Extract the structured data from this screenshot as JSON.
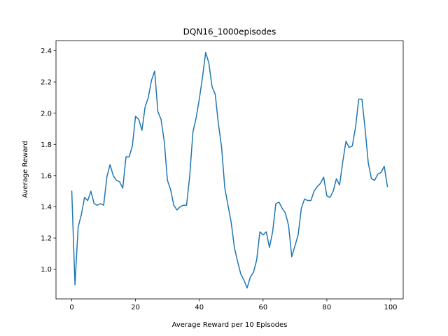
{
  "chart_data": {
    "type": "line",
    "title": "DQN16_1000episodes",
    "xlabel": "Average Reward per 10 Episodes",
    "ylabel": "Average Reward",
    "xlim": [
      -4.95,
      103.95
    ],
    "ylim": [
      0.81,
      2.465
    ],
    "xticks": [
      0,
      20,
      40,
      60,
      80,
      100
    ],
    "xtick_labels": [
      "0",
      "20",
      "40",
      "60",
      "80",
      "100"
    ],
    "yticks": [
      1.0,
      1.2,
      1.4,
      1.6,
      1.8,
      2.0,
      2.2,
      2.4
    ],
    "ytick_labels": [
      "1.0",
      "1.2",
      "1.4",
      "1.6",
      "1.8",
      "2.0",
      "2.2",
      "2.4"
    ],
    "grid": false,
    "series": [
      {
        "color": "#1f77b4",
        "x": [
          0,
          1,
          2,
          3,
          4,
          5,
          6,
          7,
          8,
          9,
          10,
          11,
          12,
          13,
          14,
          15,
          16,
          17,
          18,
          19,
          20,
          21,
          22,
          23,
          24,
          25,
          26,
          27,
          28,
          29,
          30,
          31,
          32,
          33,
          34,
          35,
          36,
          37,
          38,
          39,
          40,
          41,
          42,
          43,
          44,
          45,
          46,
          47,
          48,
          49,
          50,
          51,
          52,
          53,
          54,
          55,
          56,
          57,
          58,
          59,
          60,
          61,
          62,
          63,
          64,
          65,
          66,
          67,
          68,
          69,
          70,
          71,
          72,
          73,
          74,
          75,
          76,
          77,
          78,
          79,
          80,
          81,
          82,
          83,
          84,
          85,
          86,
          87,
          88,
          89,
          90,
          91,
          92,
          93,
          94,
          95,
          96,
          97,
          98,
          99
        ],
        "y": [
          1.5,
          0.9,
          1.27,
          1.35,
          1.46,
          1.44,
          1.5,
          1.42,
          1.41,
          1.42,
          1.41,
          1.59,
          1.67,
          1.6,
          1.57,
          1.56,
          1.52,
          1.72,
          1.72,
          1.79,
          1.98,
          1.96,
          1.89,
          2.04,
          2.1,
          2.21,
          2.27,
          2.01,
          1.96,
          1.82,
          1.57,
          1.51,
          1.41,
          1.38,
          1.4,
          1.41,
          1.41,
          1.6,
          1.88,
          1.97,
          2.09,
          2.23,
          2.39,
          2.32,
          2.17,
          2.12,
          1.93,
          1.78,
          1.52,
          1.41,
          1.3,
          1.14,
          1.05,
          0.97,
          0.93,
          0.88,
          0.95,
          0.98,
          1.06,
          1.24,
          1.22,
          1.24,
          1.14,
          1.24,
          1.42,
          1.43,
          1.39,
          1.36,
          1.28,
          1.08,
          1.15,
          1.22,
          1.39,
          1.45,
          1.44,
          1.44,
          1.5,
          1.53,
          1.55,
          1.59,
          1.47,
          1.46,
          1.5,
          1.58,
          1.54,
          1.69,
          1.82,
          1.78,
          1.79,
          1.91,
          2.09,
          2.09,
          1.9,
          1.68,
          1.58,
          1.57,
          1.61,
          1.62,
          1.66,
          1.53
        ]
      }
    ]
  }
}
